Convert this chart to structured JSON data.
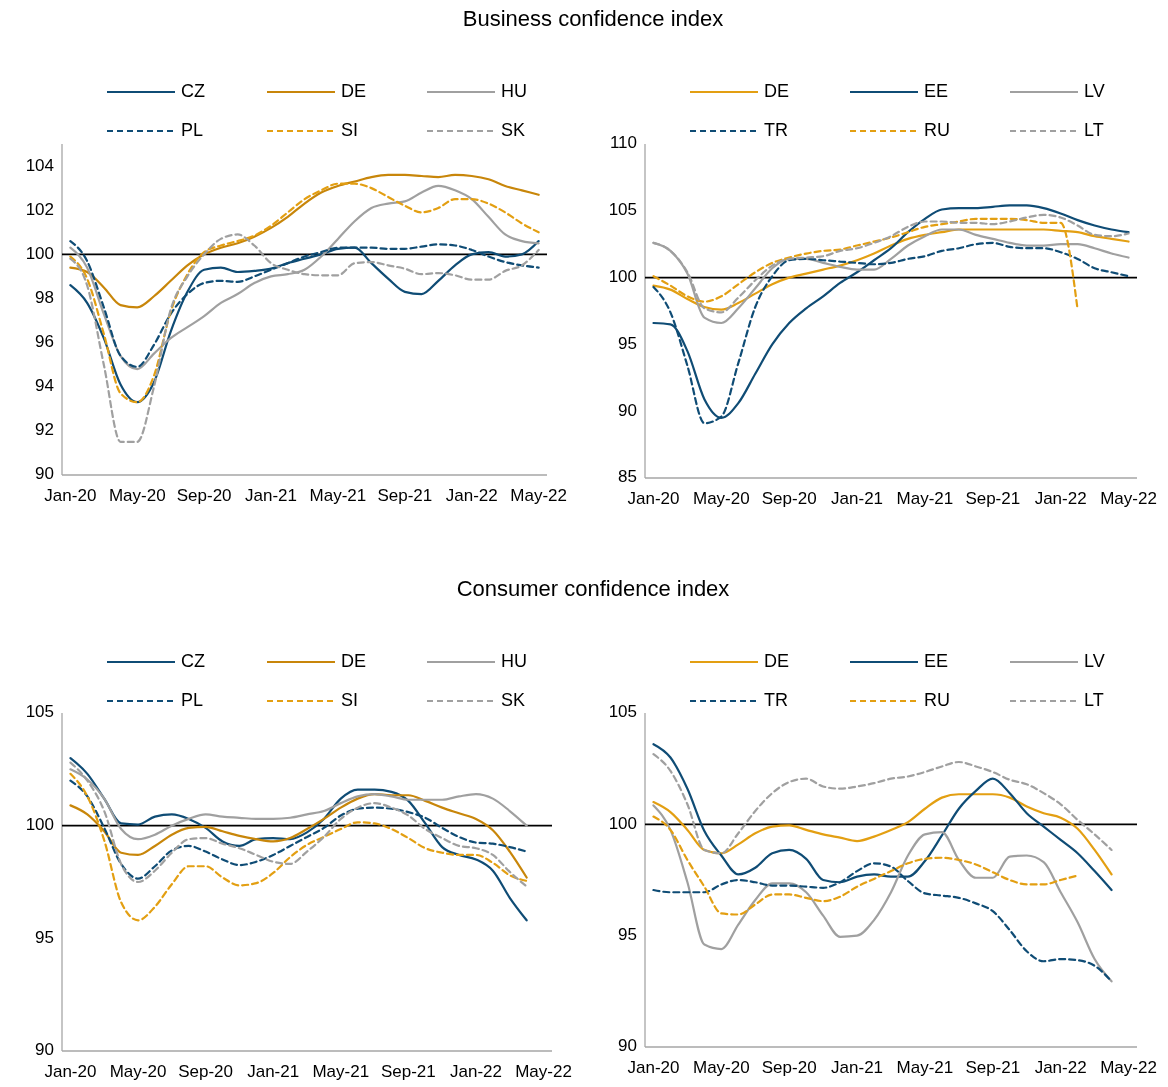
{
  "chart_data": [
    {
      "type": "line",
      "title": "Business confidence index",
      "categories": [
        "Jan-20",
        null,
        null,
        null,
        "May-20",
        null,
        null,
        null,
        "Sep-20",
        null,
        null,
        null,
        "Jan-21",
        null,
        null,
        null,
        "May-21",
        null,
        null,
        null,
        "Sep-21",
        null,
        null,
        null,
        "Jan-22",
        null,
        null,
        null,
        "May-22"
      ],
      "ylim": [
        90,
        105
      ],
      "yticks": [
        90,
        92,
        94,
        96,
        98,
        100,
        102,
        104
      ],
      "grid": false,
      "legend": "top",
      "ref_lines": [
        {
          "axis": "y",
          "value": 100,
          "color": "#000000"
        }
      ],
      "series": [
        {
          "name": "CZ",
          "color": "#0f4c75",
          "line_style": "solid",
          "values": [
            98.6,
            97.8,
            96.2,
            94.1,
            93.3,
            94.2,
            96.5,
            98.3,
            99.3,
            99.4,
            99.2,
            99.25,
            99.35,
            99.6,
            99.8,
            100.0,
            100.25,
            100.3,
            99.6,
            98.9,
            98.3,
            98.2,
            98.8,
            99.5,
            100.0,
            100.1,
            99.9,
            100.0,
            100.6
          ]
        },
        {
          "name": "DE",
          "color": "#c8860a",
          "line_style": "solid",
          "values": [
            99.4,
            99.2,
            98.5,
            97.7,
            97.6,
            98.1,
            98.8,
            99.5,
            100.0,
            100.3,
            100.5,
            100.8,
            101.2,
            101.7,
            102.3,
            102.8,
            103.1,
            103.3,
            103.5,
            103.6,
            103.6,
            103.55,
            103.5,
            103.6,
            103.55,
            103.4,
            103.1,
            102.9,
            102.7
          ]
        },
        {
          "name": "HU",
          "color": "#a0a0a0",
          "line_style": "solid",
          "values": [
            100.3,
            99.4,
            97.3,
            95.4,
            94.8,
            95.5,
            96.2,
            96.7,
            97.2,
            97.8,
            98.2,
            98.7,
            99.0,
            99.1,
            99.3,
            99.9,
            100.7,
            101.5,
            102.1,
            102.3,
            102.4,
            102.8,
            103.1,
            102.9,
            102.5,
            101.7,
            100.9,
            100.6,
            100.5
          ]
        },
        {
          "name": "PL",
          "color": "#0f4c75",
          "line_style": "dashed",
          "values": [
            100.6,
            99.7,
            97.6,
            95.4,
            94.9,
            95.9,
            97.3,
            98.2,
            98.7,
            98.8,
            98.75,
            99.0,
            99.3,
            99.6,
            99.9,
            100.1,
            100.3,
            100.3,
            100.3,
            100.25,
            100.25,
            100.35,
            100.45,
            100.4,
            100.2,
            99.9,
            99.65,
            99.5,
            99.4
          ]
        },
        {
          "name": "SI",
          "color": "#e39f12",
          "line_style": "dashed",
          "values": [
            99.9,
            98.9,
            96.4,
            93.7,
            93.3,
            94.5,
            97.4,
            99.1,
            100.1,
            100.4,
            100.6,
            100.85,
            101.3,
            101.9,
            102.5,
            102.9,
            103.2,
            103.2,
            103.0,
            102.6,
            102.2,
            101.9,
            102.1,
            102.5,
            102.5,
            102.3,
            101.9,
            101.4,
            101.0
          ]
        },
        {
          "name": "SK",
          "color": "#a0a0a0",
          "line_style": "dashed",
          "values": [
            99.8,
            98.6,
            95.0,
            91.5,
            91.5,
            94.0,
            97.5,
            99.0,
            100.0,
            100.7,
            100.9,
            100.4,
            99.6,
            99.3,
            99.1,
            99.05,
            99.05,
            99.6,
            99.65,
            99.5,
            99.35,
            99.1,
            99.15,
            99.05,
            98.85,
            98.85,
            99.25,
            99.5,
            100.2
          ]
        }
      ]
    },
    {
      "type": "line",
      "categories": [
        "Jan-20",
        null,
        null,
        null,
        "May-20",
        null,
        null,
        null,
        "Sep-20",
        null,
        null,
        null,
        "Jan-21",
        null,
        null,
        null,
        "May-21",
        null,
        null,
        null,
        "Sep-21",
        null,
        null,
        null,
        "Jan-22",
        null,
        null,
        null,
        "May-22"
      ],
      "ylim": [
        85,
        110
      ],
      "yticks": [
        85,
        90,
        95,
        100,
        105,
        110
      ],
      "grid": false,
      "legend": "top",
      "ref_lines": [
        {
          "axis": "y",
          "value": 100,
          "color": "#000000"
        }
      ],
      "series": [
        {
          "name": "DE",
          "color": "#e39f12",
          "line_style": "solid",
          "values": [
            99.4,
            99.1,
            98.4,
            97.8,
            97.6,
            98.1,
            98.8,
            99.5,
            100.0,
            100.3,
            100.6,
            100.9,
            101.3,
            101.8,
            102.4,
            102.9,
            103.2,
            103.4,
            103.6,
            103.6,
            103.6,
            103.6,
            103.6,
            103.6,
            103.5,
            103.4,
            103.1,
            102.9,
            102.7
          ]
        },
        {
          "name": "EE",
          "color": "#0f4c75",
          "line_style": "solid",
          "values": [
            96.6,
            96.5,
            94.5,
            90.9,
            89.5,
            90.6,
            92.8,
            95.0,
            96.6,
            97.7,
            98.6,
            99.6,
            100.4,
            101.3,
            102.2,
            103.4,
            104.4,
            105.1,
            105.2,
            105.2,
            105.3,
            105.4,
            105.4,
            105.2,
            104.8,
            104.3,
            103.9,
            103.6,
            103.4
          ]
        },
        {
          "name": "LV",
          "color": "#a0a0a0",
          "line_style": "solid",
          "values": [
            102.6,
            102.0,
            100.3,
            97.0,
            96.6,
            97.7,
            99.2,
            100.7,
            101.4,
            101.4,
            101.1,
            100.8,
            100.6,
            100.6,
            101.4,
            102.4,
            103.1,
            103.6,
            103.6,
            103.2,
            102.9,
            102.6,
            102.4,
            102.4,
            102.5,
            102.5,
            102.2,
            101.8,
            101.5
          ]
        },
        {
          "name": "TR",
          "color": "#0f4c75",
          "line_style": "dashed",
          "values": [
            99.3,
            97.4,
            93.4,
            89.1,
            89.6,
            93.6,
            97.8,
            100.1,
            101.3,
            101.4,
            101.3,
            101.2,
            101.1,
            101.0,
            101.1,
            101.4,
            101.6,
            102.0,
            102.2,
            102.5,
            102.6,
            102.3,
            102.2,
            102.2,
            101.9,
            101.4,
            100.7,
            100.4,
            100.1
          ]
        },
        {
          "name": "RU",
          "color": "#e39f12",
          "line_style": "dashed",
          "values": [
            100.1,
            99.4,
            98.6,
            98.2,
            98.6,
            99.5,
            100.4,
            101.1,
            101.5,
            101.8,
            102.0,
            102.1,
            102.4,
            102.7,
            103.0,
            103.4,
            103.8,
            104.0,
            104.2,
            104.4,
            104.4,
            104.4,
            104.3,
            104.1,
            104.1,
            97.6,
            null,
            null,
            null
          ]
        },
        {
          "name": "LT",
          "color": "#a0a0a0",
          "line_style": "dashed",
          "values": [
            102.6,
            102.0,
            100.4,
            97.7,
            97.4,
            98.5,
            99.8,
            100.9,
            101.4,
            101.5,
            101.6,
            102.0,
            102.2,
            102.6,
            103.1,
            103.8,
            104.2,
            104.2,
            104.1,
            104.1,
            104.0,
            104.2,
            104.5,
            104.7,
            104.5,
            103.9,
            103.2,
            103.1,
            103.3
          ]
        }
      ]
    },
    {
      "type": "line",
      "title": "Consumer confidence index",
      "categories": [
        "Jan-20",
        null,
        null,
        null,
        "May-20",
        null,
        null,
        null,
        "Sep-20",
        null,
        null,
        null,
        "Jan-21",
        null,
        null,
        null,
        "May-21",
        null,
        null,
        null,
        "Sep-21",
        null,
        null,
        null,
        "Jan-22",
        null,
        null,
        null,
        "May-22"
      ],
      "ylim": [
        90,
        105
      ],
      "yticks": [
        90,
        95,
        100,
        105
      ],
      "grid": false,
      "legend": "top",
      "ref_lines": [
        {
          "axis": "y",
          "value": 100,
          "color": "#000000"
        }
      ],
      "series": [
        {
          "name": "CZ",
          "color": "#0f4c75",
          "line_style": "solid",
          "values": [
            103.0,
            102.3,
            101.2,
            100.1,
            100.05,
            100.4,
            100.5,
            100.3,
            99.9,
            99.3,
            99.1,
            99.4,
            99.45,
            99.4,
            99.7,
            100.3,
            101.2,
            101.6,
            101.6,
            101.5,
            101.1,
            100.1,
            99.05,
            98.7,
            98.5,
            98.0,
            96.8,
            95.8,
            null
          ]
        },
        {
          "name": "DE",
          "color": "#c8860a",
          "line_style": "solid",
          "values": [
            100.9,
            100.5,
            99.75,
            98.8,
            98.7,
            99.1,
            99.6,
            99.9,
            99.95,
            99.75,
            99.55,
            99.4,
            99.3,
            99.45,
            99.85,
            100.3,
            100.8,
            101.2,
            101.4,
            101.35,
            101.35,
            101.1,
            100.8,
            100.55,
            100.3,
            99.8,
            98.85,
            97.7,
            null
          ]
        },
        {
          "name": "HU",
          "color": "#a0a0a0",
          "line_style": "solid",
          "values": [
            102.5,
            102.05,
            101.2,
            99.85,
            99.4,
            99.6,
            100.0,
            100.3,
            100.5,
            100.4,
            100.35,
            100.3,
            100.3,
            100.35,
            100.5,
            100.65,
            101.0,
            101.3,
            101.4,
            101.3,
            101.15,
            101.15,
            101.15,
            101.3,
            101.4,
            101.2,
            100.65,
            100.0,
            null
          ]
        },
        {
          "name": "PL",
          "color": "#0f4c75",
          "line_style": "dashed",
          "values": [
            102.0,
            101.3,
            99.9,
            98.3,
            97.65,
            98.2,
            98.9,
            99.1,
            98.85,
            98.5,
            98.25,
            98.4,
            98.7,
            99.1,
            99.5,
            99.9,
            100.45,
            100.75,
            100.8,
            100.75,
            100.6,
            100.35,
            99.9,
            99.5,
            99.25,
            99.2,
            99.05,
            98.85,
            null
          ]
        },
        {
          "name": "SI",
          "color": "#e39f12",
          "line_style": "dashed",
          "values": [
            102.3,
            101.3,
            99.35,
            96.6,
            95.8,
            96.4,
            97.4,
            98.2,
            98.2,
            97.7,
            97.35,
            97.45,
            97.9,
            98.6,
            99.15,
            99.5,
            99.85,
            100.15,
            100.1,
            99.85,
            99.45,
            99.0,
            98.8,
            98.7,
            98.7,
            98.35,
            97.8,
            97.55,
            null
          ]
        },
        {
          "name": "SK",
          "color": "#a0a0a0",
          "line_style": "dashed",
          "values": [
            102.8,
            102.0,
            100.65,
            98.3,
            97.5,
            98.0,
            98.8,
            99.4,
            99.45,
            99.2,
            99.0,
            98.7,
            98.4,
            98.3,
            98.85,
            99.5,
            100.3,
            100.8,
            101.0,
            100.8,
            100.45,
            99.85,
            99.45,
            99.1,
            99.0,
            98.7,
            97.95,
            97.3,
            null
          ]
        }
      ]
    },
    {
      "type": "line",
      "categories": [
        "Jan-20",
        null,
        null,
        null,
        "May-20",
        null,
        null,
        null,
        "Sep-20",
        null,
        null,
        null,
        "Jan-21",
        null,
        null,
        null,
        "May-21",
        null,
        null,
        null,
        "Sep-21",
        null,
        null,
        null,
        "Jan-22",
        null,
        null,
        null,
        "May-22"
      ],
      "ylim": [
        90,
        105
      ],
      "yticks": [
        90,
        95,
        100,
        105
      ],
      "grid": false,
      "legend": "top",
      "ref_lines": [
        {
          "axis": "y",
          "value": 100,
          "color": "#000000"
        }
      ],
      "series": [
        {
          "name": "DE",
          "color": "#e39f12",
          "line_style": "solid",
          "values": [
            101.0,
            100.55,
            99.75,
            98.85,
            98.7,
            99.1,
            99.6,
            99.9,
            99.95,
            99.75,
            99.55,
            99.4,
            99.25,
            99.45,
            99.75,
            100.1,
            100.7,
            101.2,
            101.35,
            101.35,
            101.35,
            101.2,
            100.8,
            100.5,
            100.3,
            99.8,
            98.85,
            97.75,
            null
          ]
        },
        {
          "name": "EE",
          "color": "#0f4c75",
          "line_style": "solid",
          "values": [
            103.6,
            103.0,
            101.6,
            99.7,
            98.6,
            97.75,
            98.05,
            98.7,
            98.85,
            98.45,
            97.5,
            97.4,
            97.65,
            97.75,
            97.65,
            97.65,
            98.35,
            99.5,
            100.7,
            101.5,
            102.05,
            101.4,
            100.5,
            99.9,
            99.3,
            98.7,
            97.9,
            97.05,
            null
          ]
        },
        {
          "name": "LV",
          "color": "#a0a0a0",
          "line_style": "solid",
          "values": [
            100.85,
            99.75,
            97.4,
            94.6,
            94.4,
            95.5,
            96.6,
            97.35,
            97.35,
            96.95,
            95.9,
            94.95,
            95.0,
            95.7,
            96.95,
            98.6,
            99.55,
            99.65,
            98.4,
            97.6,
            97.6,
            98.55,
            98.6,
            98.3,
            96.95,
            95.6,
            93.95,
            92.95,
            null
          ]
        },
        {
          "name": "TR",
          "color": "#0f4c75",
          "line_style": "dashed",
          "values": [
            97.05,
            96.95,
            96.95,
            96.95,
            97.3,
            97.5,
            97.4,
            97.25,
            97.25,
            97.2,
            97.15,
            97.4,
            97.9,
            98.25,
            98.1,
            97.45,
            96.9,
            96.8,
            96.7,
            96.45,
            96.1,
            95.25,
            94.3,
            93.85,
            93.95,
            93.9,
            93.65,
            92.95,
            null
          ]
        },
        {
          "name": "RU",
          "color": "#e39f12",
          "line_style": "dashed",
          "values": [
            100.35,
            99.75,
            98.4,
            97.2,
            96.0,
            95.95,
            96.4,
            96.85,
            96.85,
            96.7,
            96.55,
            96.75,
            97.2,
            97.55,
            97.9,
            98.25,
            98.45,
            98.5,
            98.4,
            98.2,
            97.85,
            97.5,
            97.3,
            97.3,
            97.5,
            97.7,
            null,
            null,
            null
          ]
        },
        {
          "name": "LT",
          "color": "#a0a0a0",
          "line_style": "dashed",
          "values": [
            103.15,
            102.4,
            100.9,
            98.85,
            98.7,
            99.6,
            100.6,
            101.4,
            101.9,
            102.05,
            101.7,
            101.6,
            101.7,
            101.85,
            102.05,
            102.15,
            102.35,
            102.6,
            102.8,
            102.6,
            102.35,
            102.0,
            101.8,
            101.4,
            100.9,
            100.2,
            99.55,
            98.85,
            null
          ]
        }
      ]
    }
  ]
}
